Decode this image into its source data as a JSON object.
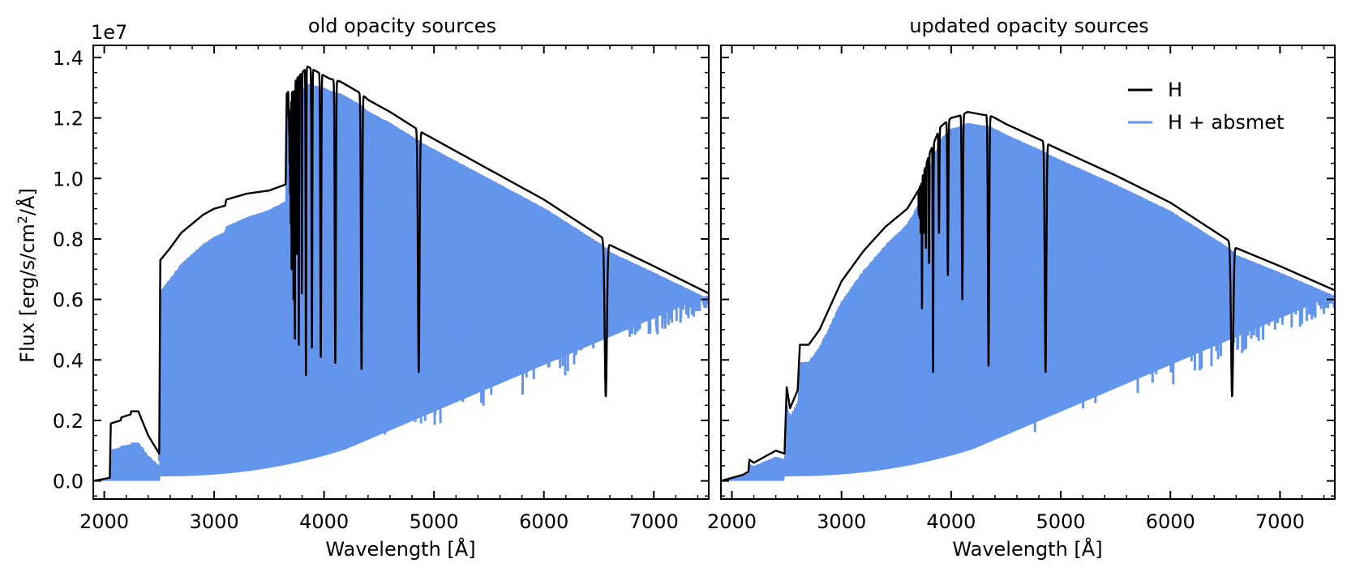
{
  "figure": {
    "ylabel_main": "Flux [erg/s/cm",
    "ylabel_sup": "2",
    "ylabel_tail": "/Å]",
    "y_multiplier": "1e7",
    "legend": {
      "items": [
        {
          "label": "H",
          "color": "#000000"
        },
        {
          "label": "H + absmet",
          "color": "#6495ED"
        }
      ]
    }
  },
  "chart_data": [
    {
      "type": "line",
      "title": "old opacity sources",
      "xlabel": "Wavelength [Å]",
      "ylabel": "Flux [erg/s/cm2/Å]",
      "y_scale_label": "1e7",
      "xlim": [
        1900,
        7500
      ],
      "ylim": [
        -0.06,
        1.44
      ],
      "xticks": [
        2000,
        3000,
        4000,
        5000,
        6000,
        7000
      ],
      "yticks": [
        0.0,
        0.2,
        0.4,
        0.6,
        0.8,
        1.0,
        1.2,
        1.4
      ],
      "ytick_labels": [
        "0.0",
        "0.2",
        "0.4",
        "0.6",
        "0.8",
        "1.0",
        "1.2",
        "1.4"
      ],
      "seed": 7,
      "series": [
        {
          "name": "H",
          "color": "#000000",
          "continuum": [
            [
              1900,
              0.0
            ],
            [
              2050,
              0.01
            ],
            [
              2060,
              0.19
            ],
            [
              2150,
              0.2
            ],
            [
              2155,
              0.21
            ],
            [
              2240,
              0.22
            ],
            [
              2245,
              0.23
            ],
            [
              2310,
              0.23
            ],
            [
              2400,
              0.15
            ],
            [
              2500,
              0.09
            ],
            [
              2510,
              0.73
            ],
            [
              2600,
              0.77
            ],
            [
              2700,
              0.82
            ],
            [
              2800,
              0.85
            ],
            [
              2900,
              0.88
            ],
            [
              3000,
              0.9
            ],
            [
              3100,
              0.91
            ],
            [
              3110,
              0.93
            ],
            [
              3300,
              0.95
            ],
            [
              3500,
              0.96
            ],
            [
              3650,
              0.98
            ],
            [
              3660,
              1.28
            ],
            [
              3700,
              1.3
            ],
            [
              3750,
              1.33
            ],
            [
              3850,
              1.37
            ],
            [
              3950,
              1.35
            ],
            [
              4050,
              1.33
            ],
            [
              4150,
              1.32
            ],
            [
              4340,
              1.28
            ],
            [
              4400,
              1.26
            ],
            [
              4600,
              1.22
            ],
            [
              4860,
              1.16
            ],
            [
              4900,
              1.15
            ],
            [
              5500,
              1.03
            ],
            [
              6000,
              0.93
            ],
            [
              6550,
              0.8
            ],
            [
              6600,
              0.78
            ],
            [
              7000,
              0.71
            ],
            [
              7500,
              0.62
            ]
          ],
          "absorption_lines": [
            [
              6563,
              0.28,
              14
            ],
            [
              4861,
              0.36,
              10
            ],
            [
              4341,
              0.37,
              8
            ],
            [
              4102,
              0.39,
              7
            ],
            [
              3970,
              0.41,
              6
            ],
            [
              3889,
              0.44,
              5
            ],
            [
              3835,
              0.35,
              4
            ],
            [
              3798,
              0.62,
              3
            ],
            [
              3770,
              0.45,
              3
            ],
            [
              3750,
              0.75,
              3
            ],
            [
              3734,
              0.47,
              3
            ],
            [
              3722,
              0.6,
              3
            ],
            [
              3712,
              0.8,
              2
            ],
            [
              3704,
              0.7,
              2
            ],
            [
              3697,
              0.85,
              2
            ],
            [
              3691,
              0.95,
              2
            ],
            [
              3686,
              1.05,
              2
            ],
            [
              3682,
              1.15,
              2
            ],
            [
              3678,
              1.2,
              2
            ]
          ]
        },
        {
          "name": "H + absmet",
          "color": "#6495ED",
          "onset": 2510,
          "n_lines": 560
        }
      ]
    },
    {
      "type": "line",
      "title": "updated opacity sources",
      "xlabel": "Wavelength [Å]",
      "ylabel": "",
      "xlim": [
        1900,
        7500
      ],
      "ylim": [
        -0.06,
        1.44
      ],
      "xticks": [
        2000,
        3000,
        4000,
        5000,
        6000,
        7000
      ],
      "yticks": [
        0.0,
        0.2,
        0.4,
        0.6,
        0.8,
        1.0,
        1.2,
        1.4
      ],
      "seed": 11,
      "series": [
        {
          "name": "H",
          "color": "#000000",
          "continuum": [
            [
              1900,
              0.0
            ],
            [
              2100,
              0.02
            ],
            [
              2150,
              0.03
            ],
            [
              2160,
              0.07
            ],
            [
              2200,
              0.06
            ],
            [
              2300,
              0.08
            ],
            [
              2400,
              0.1
            ],
            [
              2480,
              0.09
            ],
            [
              2500,
              0.31
            ],
            [
              2530,
              0.24
            ],
            [
              2600,
              0.3
            ],
            [
              2620,
              0.45
            ],
            [
              2700,
              0.45
            ],
            [
              2800,
              0.5
            ],
            [
              2900,
              0.58
            ],
            [
              3000,
              0.66
            ],
            [
              3200,
              0.76
            ],
            [
              3400,
              0.84
            ],
            [
              3600,
              0.9
            ],
            [
              3650,
              0.93
            ],
            [
              3700,
              0.96
            ],
            [
              3800,
              1.08
            ],
            [
              3900,
              1.17
            ],
            [
              4000,
              1.2
            ],
            [
              4100,
              1.21
            ],
            [
              4150,
              1.22
            ],
            [
              4300,
              1.21
            ],
            [
              4340,
              1.21
            ],
            [
              4400,
              1.2
            ],
            [
              4500,
              1.18
            ],
            [
              4860,
              1.12
            ],
            [
              4900,
              1.11
            ],
            [
              5500,
              1.01
            ],
            [
              6000,
              0.92
            ],
            [
              6550,
              0.79
            ],
            [
              6600,
              0.77
            ],
            [
              7000,
              0.71
            ],
            [
              7500,
              0.63
            ]
          ],
          "absorption_lines": [
            [
              6563,
              0.28,
              14
            ],
            [
              4861,
              0.36,
              10
            ],
            [
              4341,
              0.38,
              8
            ],
            [
              4102,
              0.6,
              7
            ],
            [
              3970,
              0.68,
              6
            ],
            [
              3889,
              0.82,
              5
            ],
            [
              3835,
              0.36,
              4
            ],
            [
              3798,
              0.72,
              3
            ],
            [
              3770,
              0.77,
              3
            ],
            [
              3750,
              0.82,
              3
            ],
            [
              3734,
              0.57,
              3
            ],
            [
              3722,
              0.82,
              3
            ],
            [
              3712,
              0.87,
              2
            ],
            [
              3704,
              0.88,
              2
            ]
          ]
        },
        {
          "name": "H + absmet",
          "color": "#6495ED",
          "onset": 2480,
          "n_lines": 560
        }
      ]
    }
  ]
}
